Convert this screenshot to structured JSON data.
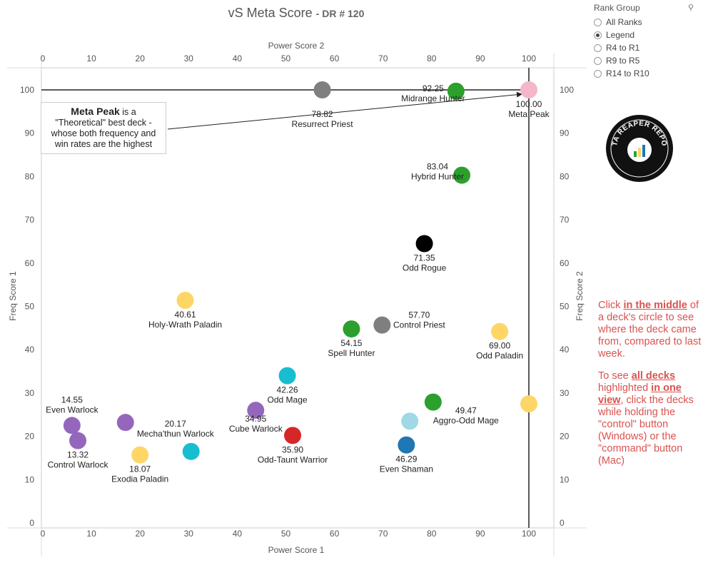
{
  "title": {
    "main": "vS Meta Score",
    "sub": "- DR # 120"
  },
  "rank_group": {
    "header": "Rank Group",
    "search_icon": "search-icon",
    "options": [
      {
        "label": "All Ranks",
        "selected": false
      },
      {
        "label": "Legend",
        "selected": true
      },
      {
        "label": "R4 to R1",
        "selected": false
      },
      {
        "label": "R9 to R5",
        "selected": false
      },
      {
        "label": "R14 to R10",
        "selected": false
      }
    ]
  },
  "logo": {
    "text": "DATA REAPER REPORT",
    "icon": "data-reaper-logo"
  },
  "annotation": {
    "bold": "Meta Peak",
    "text1": " is a",
    "text2": "\"Theoretical\" best deck - whose both frequency and win rates are the highest"
  },
  "instructions": {
    "p1_a": "Click ",
    "p1_b": "in the middle",
    "p1_c": " of a deck's circle to see where the deck came from, compared to last week.",
    "p2_a": "To see ",
    "p2_b": "all decks",
    "p2_c": " highlighted ",
    "p2_d": "in one view",
    "p2_e": ", click the decks while holding the \"control\" button (Windows) or the \"command\" button (Mac)"
  },
  "chart_data": {
    "type": "scatter",
    "xlabel": "Power Score 1",
    "xlabel_top": "Power Score 2",
    "ylabel": "Freq Score 1",
    "ylabel_right": "Freq Score 2",
    "xlim": [
      0,
      105
    ],
    "ylim": [
      0,
      105
    ],
    "xticks": [
      0,
      10,
      20,
      30,
      40,
      50,
      60,
      70,
      80,
      90,
      100
    ],
    "yticks": [
      0,
      10,
      20,
      30,
      40,
      50,
      60,
      70,
      80,
      90,
      100
    ],
    "reference_lines": {
      "x": 100,
      "y": 100
    },
    "points": [
      {
        "name": "Meta Peak",
        "score": "100.00",
        "x": 100,
        "y": 100,
        "color": "#f4b6c8"
      },
      {
        "name": "Resurrect Priest",
        "score": "78.82",
        "x": 57.5,
        "y": 100,
        "color": "#7f7f7f"
      },
      {
        "name": "Midrange Hunter",
        "score": "92.25",
        "x": 85,
        "y": 99.7,
        "color": "#2ca02c"
      },
      {
        "name": "Hybrid Hunter",
        "score": "83.04",
        "x": 86.2,
        "y": 80.3,
        "color": "#2ca02c"
      },
      {
        "name": "Odd Rogue",
        "score": "71.35",
        "x": 78.5,
        "y": 64.5,
        "color": "#000000"
      },
      {
        "name": "Holy-Wrath Paladin",
        "score": "40.61",
        "x": 29.3,
        "y": 51.4,
        "color": "#fdd667"
      },
      {
        "name": "Control Priest",
        "score": "57.70",
        "x": 69.8,
        "y": 45.7,
        "color": "#7f7f7f"
      },
      {
        "name": "Spell Hunter",
        "score": "54.15",
        "x": 63.5,
        "y": 44.8,
        "color": "#2ca02c"
      },
      {
        "name": "Odd Paladin",
        "score": "69.00",
        "x": 94,
        "y": 44.2,
        "color": "#fdd667"
      },
      {
        "name": "Odd Mage",
        "score": "42.26",
        "x": 50.3,
        "y": 34,
        "color": "#17becf"
      },
      {
        "name": "Aggro-Odd Mage",
        "score": "49.47",
        "x": 80.3,
        "y": 27.9,
        "color": "#2ca02c"
      },
      {
        "name": "",
        "score": "",
        "x": 100,
        "y": 27.5,
        "color": "#fdd667"
      },
      {
        "name": "Cube Warlock",
        "score": "34.95",
        "x": 43.8,
        "y": 26,
        "color": "#9467bd"
      },
      {
        "name": "",
        "score": "",
        "x": 75.5,
        "y": 23.5,
        "color": "#9ed9e5"
      },
      {
        "name": "Mecha'thun Warlock",
        "score": "20.17",
        "x": 17,
        "y": 23.2,
        "color": "#9467bd"
      },
      {
        "name": "Even Warlock",
        "score": "14.55",
        "x": 6,
        "y": 22.5,
        "color": "#9467bd"
      },
      {
        "name": "Odd-Taunt Warrior",
        "score": "35.90",
        "x": 51.4,
        "y": 20.2,
        "color": "#d62728"
      },
      {
        "name": "Control Warlock",
        "score": "13.32",
        "x": 7.2,
        "y": 19,
        "color": "#9467bd"
      },
      {
        "name": "Even Shaman",
        "score": "46.29",
        "x": 74.8,
        "y": 18,
        "color": "#1f77b4"
      },
      {
        "name": "",
        "score": "",
        "x": 30.5,
        "y": 16.5,
        "color": "#17becf"
      },
      {
        "name": "Exodia Paladin",
        "score": "18.07",
        "x": 20,
        "y": 15.7,
        "color": "#fdd667"
      }
    ]
  }
}
